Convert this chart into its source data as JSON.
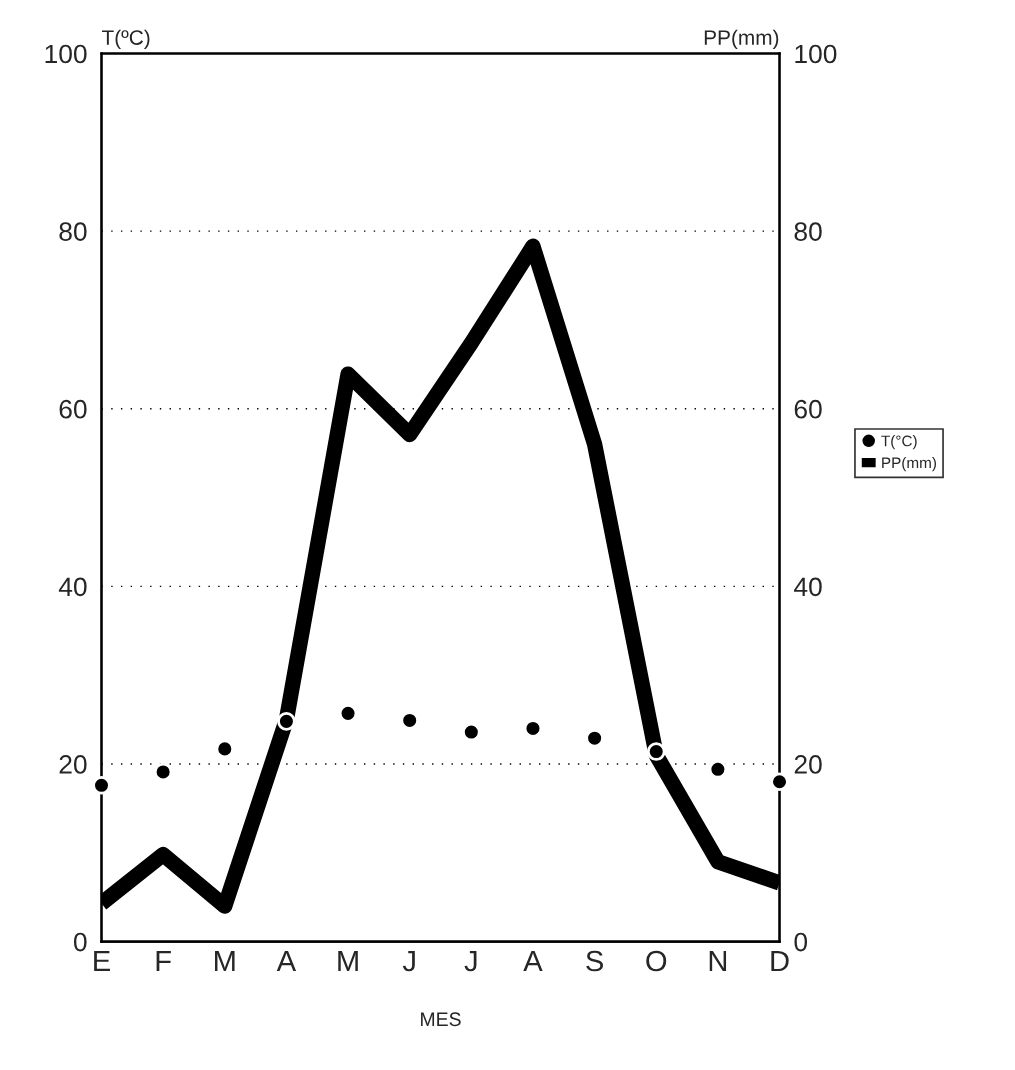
{
  "chart_data": {
    "type": "line",
    "categories": [
      "E",
      "F",
      "M",
      "A",
      "M",
      "J",
      "J",
      "A",
      "S",
      "O",
      "N",
      "D"
    ],
    "xlabel": "MES",
    "ylabel": "T(ºC)",
    "y2label": "PP(mm)",
    "series": [
      {
        "name": "T(°C)",
        "type": "scatter",
        "marker": "circle",
        "color": "#000000",
        "values": [
          17.6,
          19.1,
          21.7,
          24.8,
          25.7,
          24.9,
          23.6,
          24.0,
          22.9,
          21.4,
          19.4,
          18.0
        ]
      },
      {
        "name": "PP(mm)",
        "color": "#000000",
        "values": [
          4.3,
          9.8,
          4.0,
          25,
          63.9,
          57.1,
          67.4,
          78.3,
          56,
          21,
          9,
          6.6
        ]
      }
    ],
    "ylim": [
      0,
      100
    ],
    "yticks": [
      0,
      20,
      40,
      60,
      80,
      100
    ],
    "y2lim": [
      0,
      100
    ],
    "y2ticks": [
      0,
      20,
      40,
      60,
      80,
      100
    ],
    "grid": "y",
    "legend": "right"
  }
}
